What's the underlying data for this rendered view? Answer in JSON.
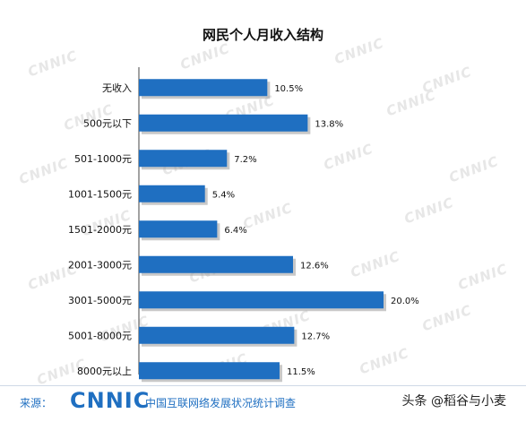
{
  "chart_data": {
    "type": "bar",
    "orientation": "horizontal",
    "title": "网民个人月收入结构",
    "categories": [
      "无收入",
      "500元以下",
      "501-1000元",
      "1001-1500元",
      "1501-2000元",
      "2001-3000元",
      "3001-5000元",
      "5001-8000元",
      "8000元以上"
    ],
    "values": [
      10.5,
      13.8,
      7.2,
      5.4,
      6.4,
      12.6,
      20.0,
      12.7,
      11.5
    ],
    "value_labels": [
      "10.5%",
      "13.8%",
      "7.2%",
      "5.4%",
      "6.4%",
      "12.6%",
      "20.0%",
      "12.7%",
      "11.5%"
    ],
    "xlim": [
      0,
      20
    ],
    "grid": false,
    "colors": {
      "bar": "#1f6fc1",
      "shadow": "#9a9a9a"
    }
  },
  "watermark": "CNNIC",
  "footer": {
    "source_label": "来源：",
    "logo": "CNNIC",
    "org": "中国互联网络发展状况统计调查",
    "credit": "头条 @稻谷与小麦"
  }
}
